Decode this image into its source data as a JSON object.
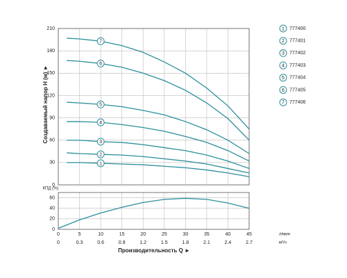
{
  "chart_data": [
    {
      "type": "line",
      "ylabel": "Создаваемый напор H (м) ►",
      "x": [
        2,
        5,
        10,
        15,
        20,
        25,
        30,
        35,
        40,
        45
      ],
      "xlim": [
        0,
        45
      ],
      "xticks": [
        0,
        5,
        10,
        15,
        20,
        25,
        30,
        35,
        40,
        45
      ],
      "ylim": [
        0,
        210
      ],
      "yticks": [
        0,
        30,
        60,
        90,
        120,
        150,
        180,
        210
      ],
      "grid": true,
      "series": [
        {
          "name": "777400",
          "marker": "1",
          "color": "#2b8e9c",
          "values": [
            30,
            30,
            29,
            28,
            27,
            25,
            23,
            20,
            16,
            11
          ]
        },
        {
          "name": "777401",
          "marker": "2",
          "color": "#2b8e9c",
          "values": [
            43,
            42,
            41,
            40,
            38,
            35,
            32,
            28,
            22,
            16
          ]
        },
        {
          "name": "777402",
          "marker": "3",
          "color": "#2b8e9c",
          "values": [
            60,
            60,
            58,
            57,
            54,
            50,
            46,
            40,
            32,
            22
          ]
        },
        {
          "name": "777403",
          "marker": "4",
          "color": "#2b8e9c",
          "values": [
            85,
            85,
            84,
            81,
            77,
            72,
            65,
            57,
            46,
            32
          ]
        },
        {
          "name": "777404",
          "marker": "5",
          "color": "#2b8e9c",
          "values": [
            111,
            110,
            108,
            105,
            100,
            94,
            85,
            74,
            60,
            42
          ]
        },
        {
          "name": "777405",
          "marker": "6",
          "color": "#2b8e9c",
          "values": [
            167,
            166,
            163,
            158,
            150,
            140,
            127,
            110,
            89,
            60
          ]
        },
        {
          "name": "777406",
          "marker": "7",
          "color": "#2b8e9c",
          "values": [
            197,
            196,
            193,
            187,
            178,
            165,
            150,
            130,
            106,
            75
          ]
        }
      ]
    },
    {
      "type": "line",
      "ylabel": "КПД (%)",
      "xlabel": "Производительность Q ►",
      "x": [
        0,
        5,
        10,
        15,
        20,
        25,
        30,
        35,
        40,
        45
      ],
      "xlim": [
        0,
        45
      ],
      "xticks": [
        0,
        5,
        10,
        15,
        20,
        25,
        30,
        35,
        40,
        45
      ],
      "xunit": "л/мин",
      "x2lim": [
        0,
        2.7
      ],
      "x2ticks": [
        0,
        0.3,
        0.6,
        0.9,
        1.2,
        1.5,
        1.8,
        2.1,
        2.4,
        2.7
      ],
      "x2unit": "м³/ч",
      "ylim": [
        0,
        70
      ],
      "yticks": [
        0,
        20,
        40,
        60
      ],
      "grid": true,
      "series": [
        {
          "color": "#2b8e9c",
          "values": [
            2,
            18,
            31,
            42,
            51,
            57,
            59,
            57,
            50,
            40
          ]
        }
      ]
    }
  ]
}
